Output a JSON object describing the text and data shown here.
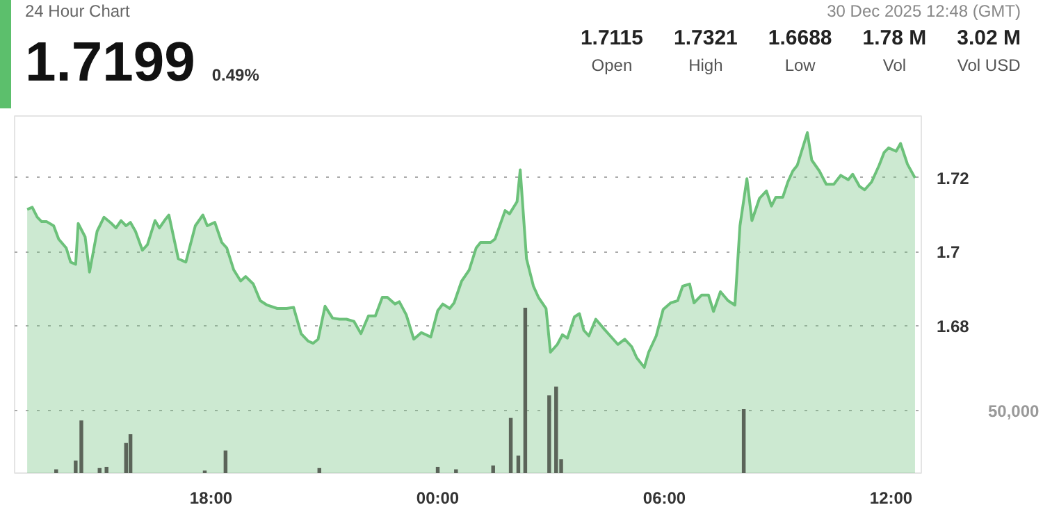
{
  "chart_data": {
    "type": "area",
    "title": "24 Hour Chart",
    "annotations": [
      "1.7199",
      "0.49%",
      "30 Dec 2025 12:48 (GMT)",
      "1.7115",
      "Open",
      "1.7321",
      "High",
      "1.6688",
      "Low",
      "1.78 M",
      "Vol",
      "3.02 M",
      "Vol USD"
    ],
    "xlim": [
      "2025-12-29T12:48",
      "2025-12-30T12:48"
    ],
    "xticks": [
      {
        "value": "2025-12-29T18:00",
        "label": "18:00"
      },
      {
        "value": "2025-12-30T00:00",
        "label": "00:00"
      },
      {
        "value": "2025-12-30T06:00",
        "label": "06:00"
      },
      {
        "value": "2025-12-30T12:00",
        "label": "12:00"
      }
    ],
    "ylim": [
      1.6403,
      1.7366
    ],
    "yticks": [
      1.68,
      1.7,
      1.72
    ],
    "y2lim": [
      0,
      285000
    ],
    "y2ticks": [
      {
        "value": 50000,
        "label": "50,000"
      }
    ],
    "grid": "y",
    "series": [
      {
        "color": "#6cc17a",
        "x": [
          "2025-12-29T13:08",
          "2025-12-29T13:16",
          "2025-12-29T13:24",
          "2025-12-29T13:31",
          "2025-12-29T13:39",
          "2025-12-29T13:50",
          "2025-12-29T13:58",
          "2025-12-29T14:10",
          "2025-12-29T14:17",
          "2025-12-29T14:25",
          "2025-12-29T14:29",
          "2025-12-29T14:40",
          "2025-12-29T14:47",
          "2025-12-29T14:59",
          "2025-12-29T15:10",
          "2025-12-29T15:22",
          "2025-12-29T15:29",
          "2025-12-29T15:37",
          "2025-12-29T15:45",
          "2025-12-29T15:52",
          "2025-12-29T16:00",
          "2025-12-29T16:11",
          "2025-12-29T16:19",
          "2025-12-29T16:31",
          "2025-12-29T16:38",
          "2025-12-29T16:46",
          "2025-12-29T16:53",
          "2025-12-29T17:08",
          "2025-12-29T17:20",
          "2025-12-29T17:35",
          "2025-12-29T17:47",
          "2025-12-29T17:54",
          "2025-12-29T18:06",
          "2025-12-29T18:17",
          "2025-12-29T18:25",
          "2025-12-29T18:36",
          "2025-12-29T18:47",
          "2025-12-29T18:55",
          "2025-12-29T19:07",
          "2025-12-29T19:18",
          "2025-12-29T19:29",
          "2025-12-29T19:45",
          "2025-12-29T20:00",
          "2025-12-29T20:11",
          "2025-12-29T20:23",
          "2025-12-29T20:34",
          "2025-12-29T20:42",
          "2025-12-29T20:50",
          "2025-12-29T21:01",
          "2025-12-29T21:13",
          "2025-12-29T21:24",
          "2025-12-29T21:35",
          "2025-12-29T21:47",
          "2025-12-29T21:58",
          "2025-12-29T22:10",
          "2025-12-29T22:21",
          "2025-12-29T22:32",
          "2025-12-29T22:40",
          "2025-12-29T22:52",
          "2025-12-29T22:59",
          "2025-12-29T23:10",
          "2025-12-29T23:22",
          "2025-12-29T23:34",
          "2025-12-29T23:49",
          "2025-12-30T00:00",
          "2025-12-30T00:08",
          "2025-12-30T00:19",
          "2025-12-30T00:26",
          "2025-12-30T00:38",
          "2025-12-30T00:50",
          "2025-12-30T01:01",
          "2025-12-30T01:08",
          "2025-12-30T01:24",
          "2025-12-30T01:31",
          "2025-12-30T01:47",
          "2025-12-30T01:54",
          "2025-12-30T02:06",
          "2025-12-30T02:11",
          "2025-12-30T02:21",
          "2025-12-30T02:32",
          "2025-12-30T02:40",
          "2025-12-30T02:52",
          "2025-12-30T02:59",
          "2025-12-30T03:10",
          "2025-12-30T03:18",
          "2025-12-30T03:26",
          "2025-12-30T03:37",
          "2025-12-30T03:45",
          "2025-12-30T03:52",
          "2025-12-30T04:00",
          "2025-12-30T04:11",
          "2025-12-30T04:23",
          "2025-12-30T04:34",
          "2025-12-30T04:46",
          "2025-12-30T04:57",
          "2025-12-30T05:08",
          "2025-12-30T05:16",
          "2025-12-30T05:28",
          "2025-12-30T05:35",
          "2025-12-30T05:47",
          "2025-12-30T05:58",
          "2025-12-30T06:10",
          "2025-12-30T06:21",
          "2025-12-30T06:29",
          "2025-12-30T06:40",
          "2025-12-30T06:47",
          "2025-12-30T06:59",
          "2025-12-30T07:10",
          "2025-12-30T07:18",
          "2025-12-30T07:29",
          "2025-12-30T07:41",
          "2025-12-30T07:52",
          "2025-12-30T08:00",
          "2025-12-30T08:11",
          "2025-12-30T08:19",
          "2025-12-30T08:31",
          "2025-12-30T08:42",
          "2025-12-30T08:50",
          "2025-12-30T08:57",
          "2025-12-30T09:08",
          "2025-12-30T09:16",
          "2025-12-30T09:24",
          "2025-12-30T09:31",
          "2025-12-30T09:39",
          "2025-12-30T09:47",
          "2025-12-30T09:54",
          "2025-12-30T10:06",
          "2025-12-30T10:17",
          "2025-12-30T10:29",
          "2025-12-30T10:40",
          "2025-12-30T10:52",
          "2025-12-30T10:59",
          "2025-12-30T11:10",
          "2025-12-30T11:18",
          "2025-12-30T11:29",
          "2025-12-30T11:41",
          "2025-12-30T11:49",
          "2025-12-30T11:56",
          "2025-12-30T12:08",
          "2025-12-30T12:15",
          "2025-12-30T12:26",
          "2025-12-30T12:38"
        ],
        "values": [
          1.7114,
          1.712,
          1.7093,
          1.7081,
          1.7081,
          1.707,
          1.7034,
          1.701,
          1.6972,
          1.6966,
          1.7076,
          1.704,
          1.6945,
          1.7055,
          1.7093,
          1.7076,
          1.7064,
          1.7084,
          1.707,
          1.7079,
          1.7055,
          1.7004,
          1.7019,
          1.7084,
          1.7064,
          1.7084,
          1.7099,
          1.6981,
          1.6972,
          1.707,
          1.7099,
          1.707,
          1.7079,
          1.7025,
          1.701,
          1.6951,
          1.6921,
          1.6933,
          1.6913,
          1.6868,
          1.6856,
          1.6847,
          1.6847,
          1.685,
          1.6779,
          1.6759,
          1.6753,
          1.6764,
          1.6853,
          1.6821,
          1.6818,
          1.6818,
          1.6812,
          1.6779,
          1.6827,
          1.6827,
          1.6877,
          1.6877,
          1.6859,
          1.6865,
          1.683,
          1.6764,
          1.6782,
          1.677,
          1.6841,
          1.6859,
          1.6847,
          1.6862,
          1.6921,
          1.6951,
          1.701,
          1.7025,
          1.7025,
          1.7034,
          1.7111,
          1.7102,
          1.7135,
          1.7221,
          1.6981,
          1.6907,
          1.6877,
          1.6847,
          1.6729,
          1.675,
          1.6776,
          1.6767,
          1.6824,
          1.6833,
          1.6788,
          1.6773,
          1.6818,
          1.6794,
          1.6773,
          1.675,
          1.6764,
          1.6744,
          1.6714,
          1.6688,
          1.6729,
          1.6773,
          1.6844,
          1.6862,
          1.6868,
          1.6907,
          1.6913,
          1.6862,
          1.6883,
          1.6883,
          1.6839,
          1.6892,
          1.6868,
          1.6856,
          1.707,
          1.7197,
          1.7084,
          1.7144,
          1.7164,
          1.7123,
          1.7147,
          1.7147,
          1.7188,
          1.7218,
          1.7233,
          1.7277,
          1.7321,
          1.7247,
          1.7218,
          1.7182,
          1.7182,
          1.7206,
          1.7194,
          1.7209,
          1.7176,
          1.7167,
          1.7188,
          1.7233,
          1.7268,
          1.728,
          1.7271,
          1.7292,
          1.7236,
          1.7199
        ]
      },
      {
        "type": "bar",
        "axis": "y2",
        "color": "#5b6459",
        "x": [
          "2025-12-29T13:54",
          "2025-12-29T14:25",
          "2025-12-29T14:34",
          "2025-12-29T15:03",
          "2025-12-29T15:14",
          "2025-12-29T15:45",
          "2025-12-29T15:52",
          "2025-12-29T17:50",
          "2025-12-29T18:23",
          "2025-12-29T20:52",
          "2025-12-30T00:00",
          "2025-12-30T00:29",
          "2025-12-30T01:28",
          "2025-12-30T01:56",
          "2025-12-30T02:08",
          "2025-12-30T02:19",
          "2025-12-30T02:57",
          "2025-12-30T03:08",
          "2025-12-30T03:16",
          "2025-12-30T08:06"
        ],
        "values": [
          3000,
          10000,
          42000,
          4000,
          5000,
          24000,
          31000,
          2000,
          18000,
          4000,
          5000,
          3000,
          6000,
          44000,
          14000,
          132000,
          62000,
          69000,
          11000,
          51000
        ]
      }
    ]
  }
}
